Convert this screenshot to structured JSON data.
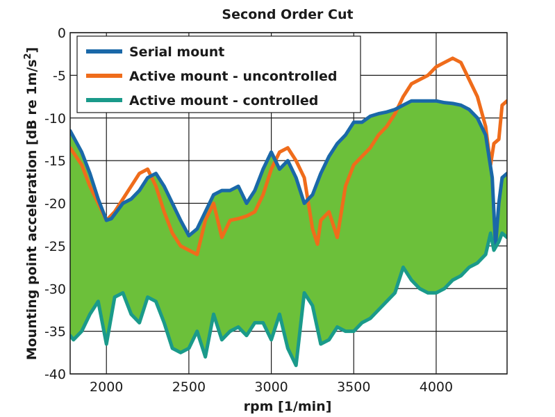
{
  "chart_data": {
    "type": "line",
    "title": "Second Order Cut",
    "xlabel": "rpm [1/min]",
    "ylabel_main": "Mounting point acceleration [dB re 1m/s",
    "ylabel_sup": "2",
    "ylabel_end": "]",
    "xlim": [
      1780,
      4430
    ],
    "ylim": [
      -40,
      0
    ],
    "xticks": [
      2000,
      2500,
      3000,
      3500,
      4000
    ],
    "yticks": [
      0,
      -5,
      -10,
      -15,
      -20,
      -25,
      -30,
      -35,
      -40
    ],
    "grid": true,
    "legend_position": "top-left",
    "fill_between": {
      "upper": "Serial mount",
      "lower": "Active mount - controlled",
      "color": "#6cc03a"
    },
    "series": [
      {
        "name": "Serial mount",
        "color": "#1a68a8",
        "x": [
          1780,
          1850,
          1900,
          1950,
          2000,
          2030,
          2100,
          2150,
          2200,
          2250,
          2300,
          2350,
          2400,
          2450,
          2500,
          2550,
          2600,
          2650,
          2700,
          2750,
          2800,
          2850,
          2900,
          2950,
          3000,
          3050,
          3100,
          3150,
          3200,
          3250,
          3300,
          3350,
          3400,
          3450,
          3500,
          3550,
          3600,
          3650,
          3700,
          3750,
          3800,
          3850,
          3900,
          3950,
          4000,
          4050,
          4100,
          4150,
          4200,
          4250,
          4300,
          4340,
          4360,
          4380,
          4400,
          4430
        ],
        "y": [
          -11.5,
          -14,
          -16.5,
          -19.5,
          -22,
          -21.8,
          -20,
          -19.5,
          -18.5,
          -17,
          -16.5,
          -18,
          -20,
          -22,
          -23.8,
          -23,
          -21,
          -19,
          -18.5,
          -18.5,
          -18,
          -20,
          -18.5,
          -16,
          -14,
          -16,
          -15,
          -17,
          -20,
          -19,
          -16.5,
          -14.5,
          -13,
          -12,
          -10.5,
          -10.5,
          -9.8,
          -9.5,
          -9.3,
          -9,
          -8.5,
          -8,
          -8,
          -8,
          -8,
          -8.2,
          -8.3,
          -8.5,
          -9,
          -10,
          -12,
          -17,
          -25,
          -20,
          -17,
          -16.5
        ]
      },
      {
        "name": "Active mount - uncontrolled",
        "color": "#ef6c1b",
        "x": [
          1780,
          1850,
          1900,
          1950,
          2000,
          2050,
          2100,
          2150,
          2200,
          2250,
          2300,
          2350,
          2400,
          2450,
          2500,
          2550,
          2600,
          2650,
          2700,
          2750,
          2800,
          2850,
          2900,
          2950,
          3000,
          3050,
          3100,
          3150,
          3200,
          3250,
          3280,
          3300,
          3350,
          3400,
          3450,
          3500,
          3550,
          3600,
          3650,
          3700,
          3750,
          3800,
          3850,
          3900,
          3950,
          4000,
          4050,
          4100,
          4150,
          4200,
          4250,
          4300,
          4330,
          4350,
          4380,
          4400,
          4430
        ],
        "y": [
          -13.5,
          -15.5,
          -18,
          -20,
          -22,
          -21,
          -19.5,
          -18,
          -16.5,
          -16,
          -18,
          -21,
          -23.5,
          -25,
          -25.5,
          -26,
          -22,
          -20,
          -24,
          -22,
          -21.8,
          -21.5,
          -21,
          -19,
          -16,
          -14,
          -13.5,
          -15,
          -17,
          -23,
          -24.8,
          -22,
          -21,
          -24,
          -18,
          -15.5,
          -14.5,
          -13.5,
          -12,
          -11,
          -9.5,
          -7.5,
          -6,
          -5.5,
          -5,
          -4,
          -3.5,
          -3,
          -3.5,
          -5.5,
          -7.5,
          -11,
          -15.5,
          -13,
          -12.5,
          -8.5,
          -8
        ]
      },
      {
        "name": "Active mount - controlled",
        "color": "#1a9a8a",
        "x": [
          1780,
          1800,
          1850,
          1900,
          1950,
          2000,
          2050,
          2100,
          2150,
          2200,
          2250,
          2300,
          2350,
          2400,
          2450,
          2500,
          2550,
          2600,
          2650,
          2700,
          2750,
          2800,
          2850,
          2900,
          2950,
          3000,
          3050,
          3100,
          3150,
          3200,
          3250,
          3300,
          3350,
          3400,
          3450,
          3500,
          3550,
          3600,
          3650,
          3700,
          3750,
          3800,
          3850,
          3900,
          3950,
          4000,
          4050,
          4100,
          4150,
          4200,
          4250,
          4300,
          4330,
          4350,
          4380,
          4400,
          4430
        ],
        "y": [
          -35.5,
          -36,
          -35,
          -33,
          -31.5,
          -36.5,
          -31,
          -30.5,
          -33,
          -34,
          -31,
          -31.5,
          -34,
          -37,
          -37.5,
          -37,
          -35,
          -38,
          -33,
          -36,
          -35,
          -34.5,
          -35.5,
          -34,
          -34,
          -36,
          -33,
          -37,
          -39,
          -30.5,
          -32,
          -36.5,
          -36,
          -34.5,
          -35,
          -35,
          -34,
          -33.5,
          -32.5,
          -31.5,
          -30.5,
          -27.5,
          -29,
          -30,
          -30.5,
          -30.5,
          -30,
          -29,
          -28.5,
          -27.5,
          -27,
          -26,
          -23.5,
          -25.5,
          -24.5,
          -23.5,
          -24
        ]
      }
    ]
  }
}
